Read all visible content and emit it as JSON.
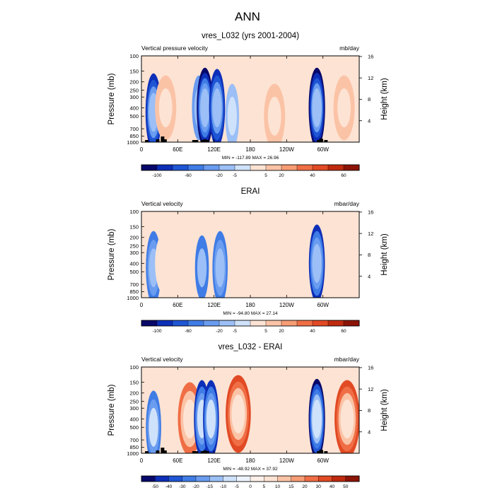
{
  "figure_title": "ANN",
  "panels": [
    {
      "title": "vres_L032 (yrs 2001-2004)",
      "left_label": "Vertical pressure velocity",
      "right_label": "mb/day",
      "stats": "MIN = -117.89  MAX = 26.96",
      "colorbar": {
        "labels": [
          "-100",
          "-60",
          "-20",
          "-5",
          "5",
          "20",
          "40",
          "60"
        ],
        "colors": [
          "#08086a",
          "#0d2fb8",
          "#1f56d4",
          "#3f7ce6",
          "#6a9cf0",
          "#9bbff6",
          "#cfe2fb",
          "#fde3d3",
          "#fbc3a6",
          "#f79c74",
          "#f06e45",
          "#e14a24",
          "#bf2a0f",
          "#8c1407"
        ]
      }
    },
    {
      "title": "ERAI",
      "left_label": "Vertical velocity",
      "right_label": "mbar/day",
      "stats": "MIN = -94.80  MAX = 27.14",
      "colorbar": {
        "labels": [
          "-100",
          "-60",
          "-20",
          "-5",
          "5",
          "20",
          "40",
          "60"
        ],
        "colors": [
          "#08086a",
          "#0d2fb8",
          "#1f56d4",
          "#3f7ce6",
          "#6a9cf0",
          "#9bbff6",
          "#cfe2fb",
          "#fde3d3",
          "#fbc3a6",
          "#f79c74",
          "#f06e45",
          "#e14a24",
          "#bf2a0f",
          "#8c1407"
        ]
      }
    },
    {
      "title": "vres_L032 - ERAI",
      "left_label": "Vertical velocity",
      "right_label": "mbar/day",
      "stats": "MIN = -48.92  MAX = 37.92",
      "colorbar": {
        "labels": [
          "-50",
          "-40",
          "-30",
          "-20",
          "-15",
          "-10",
          "-5",
          "0",
          "5",
          "10",
          "15",
          "20",
          "30",
          "40",
          "50"
        ],
        "colors": [
          "#08086a",
          "#0d2fb8",
          "#1f56d4",
          "#3f7ce6",
          "#6a9cf0",
          "#9bbff6",
          "#cfe2fb",
          "#eef4fd",
          "#fdf0e8",
          "#fde3d3",
          "#fbc3a6",
          "#f79c74",
          "#f06e45",
          "#e14a24",
          "#bf2a0f",
          "#8c1407"
        ]
      }
    }
  ],
  "chart_data": [
    {
      "type": "heatmap",
      "title": "vres_L032 (yrs 2001-2004)",
      "xlabel": "",
      "ylabel": "Pressure (mb)",
      "y2label": "Height (km)",
      "x_ticklabels": [
        "0",
        "60E",
        "120E",
        "180",
        "120W",
        "60W"
      ],
      "y_ticklabels": [
        "100",
        "150",
        "200",
        "250",
        "300",
        "400",
        "500",
        "700",
        "850",
        "1000"
      ],
      "y2_ticklabels": [
        "4",
        "8",
        "12",
        "16"
      ],
      "ylim": [
        1000,
        100
      ],
      "xlim": [
        0,
        360
      ],
      "units": "mb/day",
      "min": -117.89,
      "max": 26.96,
      "features": [
        {
          "lon": 20,
          "p": 450,
          "value": -90
        },
        {
          "lon": 40,
          "p": 400,
          "value": 20
        },
        {
          "lon": 95,
          "p": 400,
          "value": -40
        },
        {
          "lon": 105,
          "p": 400,
          "value": -100
        },
        {
          "lon": 125,
          "p": 400,
          "value": -90
        },
        {
          "lon": 150,
          "p": 500,
          "value": -30
        },
        {
          "lon": 220,
          "p": 500,
          "value": 20
        },
        {
          "lon": 290,
          "p": 400,
          "value": -110
        },
        {
          "lon": 335,
          "p": 400,
          "value": 25
        }
      ]
    },
    {
      "type": "heatmap",
      "title": "ERAI",
      "xlabel": "",
      "ylabel": "Pressure (mb)",
      "y2label": "Height (km)",
      "x_ticklabels": [
        "0",
        "60E",
        "120E",
        "180",
        "120W",
        "60W"
      ],
      "y_ticklabels": [
        "100",
        "150",
        "200",
        "250",
        "300",
        "400",
        "500",
        "700",
        "850",
        "1000"
      ],
      "y2_ticklabels": [
        "4",
        "8",
        "12",
        "16"
      ],
      "ylim": [
        1000,
        100
      ],
      "xlim": [
        0,
        360
      ],
      "units": "mbar/day",
      "min": -94.8,
      "max": 27.14,
      "features": [
        {
          "lon": 20,
          "p": 450,
          "value": -60
        },
        {
          "lon": 40,
          "p": 400,
          "value": 15
        },
        {
          "lon": 100,
          "p": 450,
          "value": -50
        },
        {
          "lon": 130,
          "p": 450,
          "value": -60
        },
        {
          "lon": 220,
          "p": 500,
          "value": 15
        },
        {
          "lon": 290,
          "p": 400,
          "value": -80
        },
        {
          "lon": 325,
          "p": 400,
          "value": 10
        }
      ]
    },
    {
      "type": "heatmap",
      "title": "vres_L032 - ERAI",
      "xlabel": "",
      "ylabel": "Pressure (mb)",
      "y2label": "Height (km)",
      "x_ticklabels": [
        "0",
        "60E",
        "120E",
        "180",
        "120W",
        "60W"
      ],
      "y_ticklabels": [
        "100",
        "150",
        "200",
        "250",
        "300",
        "400",
        "500",
        "700",
        "850",
        "1000"
      ],
      "y2_ticklabels": [
        "4",
        "8",
        "12",
        "16"
      ],
      "ylim": [
        1000,
        100
      ],
      "xlim": [
        0,
        360
      ],
      "units": "mbar/day",
      "min": -48.92,
      "max": 37.92,
      "features": [
        {
          "lon": 20,
          "p": 500,
          "value": -30
        },
        {
          "lon": 80,
          "p": 400,
          "value": 25
        },
        {
          "lon": 100,
          "p": 400,
          "value": -40
        },
        {
          "lon": 115,
          "p": 400,
          "value": -40
        },
        {
          "lon": 160,
          "p": 350,
          "value": 35
        },
        {
          "lon": 290,
          "p": 400,
          "value": -45
        },
        {
          "lon": 340,
          "p": 400,
          "value": 35
        }
      ]
    }
  ]
}
